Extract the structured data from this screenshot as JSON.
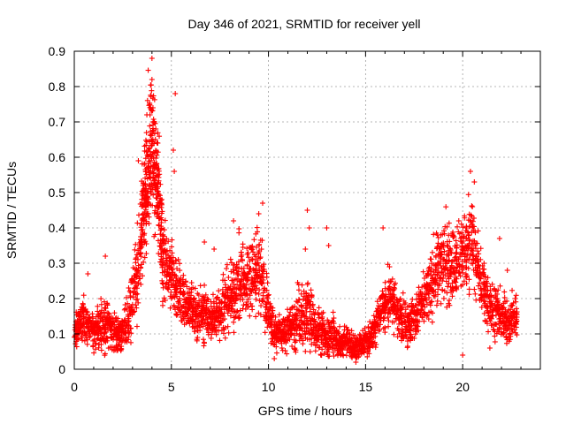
{
  "chart_data": {
    "type": "scatter",
    "title": "Day 346 of 2021, SRMTID for receiver yell",
    "xlabel": "GPS time / hours",
    "ylabel": "SRMTID / TECUs",
    "xlim": [
      0,
      24
    ],
    "ylim": [
      0,
      0.9
    ],
    "xticks": [
      0,
      5,
      10,
      15,
      20
    ],
    "xtick_labels": [
      "0",
      "5",
      "10",
      "15",
      "20"
    ],
    "yticks": [
      0,
      0.1,
      0.2,
      0.3,
      0.4,
      0.5,
      0.6,
      0.7,
      0.8,
      0.9
    ],
    "ytick_labels": [
      "0",
      "0.1",
      "0.2",
      "0.3",
      "0.4",
      "0.5",
      "0.6",
      "0.7",
      "0.8",
      "0.9"
    ],
    "grid": true,
    "marker": "plus",
    "color": "#ff0000",
    "series": [
      {
        "name": "SRMTID",
        "x": [
          0.0,
          0.2,
          0.4,
          0.6,
          0.8,
          1.0,
          1.2,
          1.4,
          1.6,
          1.8,
          2.0,
          2.2,
          2.4,
          2.6,
          2.8,
          3.0,
          3.2,
          3.4,
          3.5,
          3.6,
          3.7,
          3.8,
          3.9,
          4.0,
          4.1,
          4.2,
          4.3,
          4.4,
          4.5,
          4.6,
          4.8,
          5.0,
          5.2,
          5.4,
          5.6,
          5.8,
          6.0,
          6.2,
          6.4,
          6.6,
          6.8,
          7.0,
          7.2,
          7.4,
          7.6,
          7.8,
          8.0,
          8.2,
          8.4,
          8.6,
          8.8,
          9.0,
          9.2,
          9.4,
          9.6,
          9.8,
          10.0,
          10.2,
          10.4,
          10.6,
          10.8,
          11.0,
          11.2,
          11.4,
          11.6,
          11.8,
          12.0,
          12.2,
          12.4,
          12.6,
          12.8,
          13.0,
          13.2,
          13.4,
          13.6,
          13.8,
          14.0,
          14.2,
          14.4,
          14.6,
          14.8,
          15.0,
          15.2,
          15.4,
          15.6,
          15.8,
          16.0,
          16.2,
          16.4,
          16.6,
          16.8,
          17.0,
          17.2,
          17.4,
          17.6,
          17.8,
          18.0,
          18.2,
          18.4,
          18.6,
          18.8,
          19.0,
          19.2,
          19.4,
          19.6,
          19.8,
          20.0,
          20.2,
          20.4,
          20.6,
          20.8,
          21.0,
          21.2,
          21.4,
          21.6,
          21.8,
          22.0,
          22.2,
          22.4,
          22.6,
          22.8
        ],
        "y": [
          0.09,
          0.12,
          0.15,
          0.13,
          0.11,
          0.1,
          0.12,
          0.11,
          0.13,
          0.12,
          0.1,
          0.11,
          0.09,
          0.12,
          0.15,
          0.2,
          0.26,
          0.34,
          0.42,
          0.48,
          0.52,
          0.58,
          0.62,
          0.66,
          0.6,
          0.55,
          0.48,
          0.42,
          0.36,
          0.32,
          0.28,
          0.26,
          0.24,
          0.22,
          0.2,
          0.18,
          0.17,
          0.16,
          0.15,
          0.16,
          0.15,
          0.14,
          0.15,
          0.16,
          0.18,
          0.19,
          0.2,
          0.22,
          0.24,
          0.25,
          0.24,
          0.26,
          0.28,
          0.3,
          0.27,
          0.22,
          0.16,
          0.12,
          0.11,
          0.1,
          0.1,
          0.11,
          0.12,
          0.13,
          0.15,
          0.14,
          0.16,
          0.14,
          0.12,
          0.11,
          0.1,
          0.09,
          0.1,
          0.09,
          0.08,
          0.07,
          0.08,
          0.07,
          0.06,
          0.06,
          0.07,
          0.08,
          0.09,
          0.11,
          0.14,
          0.17,
          0.19,
          0.2,
          0.19,
          0.17,
          0.15,
          0.14,
          0.13,
          0.14,
          0.15,
          0.17,
          0.19,
          0.21,
          0.24,
          0.27,
          0.29,
          0.3,
          0.31,
          0.3,
          0.29,
          0.3,
          0.33,
          0.35,
          0.37,
          0.33,
          0.28,
          0.24,
          0.21,
          0.18,
          0.17,
          0.16,
          0.15,
          0.14,
          0.13,
          0.14,
          0.15
        ],
        "spread": [
          0.03,
          0.04,
          0.05,
          0.05,
          0.04,
          0.04,
          0.05,
          0.06,
          0.06,
          0.05,
          0.05,
          0.05,
          0.04,
          0.05,
          0.06,
          0.08,
          0.09,
          0.1,
          0.12,
          0.13,
          0.14,
          0.15,
          0.16,
          0.16,
          0.15,
          0.14,
          0.13,
          0.12,
          0.11,
          0.1,
          0.08,
          0.08,
          0.07,
          0.07,
          0.07,
          0.06,
          0.06,
          0.06,
          0.06,
          0.06,
          0.06,
          0.05,
          0.06,
          0.06,
          0.07,
          0.07,
          0.07,
          0.08,
          0.09,
          0.09,
          0.09,
          0.09,
          0.1,
          0.1,
          0.1,
          0.08,
          0.06,
          0.05,
          0.04,
          0.04,
          0.04,
          0.05,
          0.05,
          0.06,
          0.07,
          0.07,
          0.08,
          0.07,
          0.06,
          0.05,
          0.05,
          0.04,
          0.05,
          0.05,
          0.04,
          0.03,
          0.04,
          0.03,
          0.03,
          0.03,
          0.03,
          0.03,
          0.04,
          0.04,
          0.05,
          0.05,
          0.06,
          0.06,
          0.06,
          0.05,
          0.05,
          0.05,
          0.05,
          0.05,
          0.05,
          0.06,
          0.06,
          0.07,
          0.07,
          0.08,
          0.09,
          0.09,
          0.09,
          0.09,
          0.09,
          0.09,
          0.09,
          0.1,
          0.1,
          0.09,
          0.08,
          0.07,
          0.07,
          0.06,
          0.06,
          0.05,
          0.05,
          0.05,
          0.05,
          0.05,
          0.05
        ],
        "outliers": [
          [
            4.0,
            0.88
          ],
          [
            4.0,
            0.82
          ],
          [
            5.2,
            0.78
          ],
          [
            4.05,
            0.74
          ],
          [
            3.9,
            0.72
          ],
          [
            4.1,
            0.7
          ],
          [
            4.2,
            0.68
          ],
          [
            3.3,
            0.59
          ],
          [
            3.6,
            0.58
          ],
          [
            5.1,
            0.62
          ],
          [
            5.15,
            0.56
          ],
          [
            4.3,
            0.64
          ],
          [
            3.8,
            0.62
          ],
          [
            9.7,
            0.47
          ],
          [
            9.5,
            0.44
          ],
          [
            8.2,
            0.42
          ],
          [
            12.0,
            0.45
          ],
          [
            12.1,
            0.4
          ],
          [
            13.0,
            0.4
          ],
          [
            15.9,
            0.4
          ],
          [
            20.4,
            0.56
          ],
          [
            20.6,
            0.53
          ],
          [
            20.5,
            0.46
          ],
          [
            19.2,
            0.35
          ],
          [
            21.9,
            0.37
          ],
          [
            13.1,
            0.35
          ],
          [
            11.9,
            0.34
          ],
          [
            6.7,
            0.36
          ],
          [
            7.2,
            0.34
          ],
          [
            20.0,
            0.04
          ],
          [
            21.4,
            0.06
          ],
          [
            1.6,
            0.32
          ],
          [
            0.7,
            0.27
          ],
          [
            2.8,
            0.23
          ],
          [
            18.7,
            0.38
          ],
          [
            19.8,
            0.42
          ],
          [
            20.2,
            0.4
          ],
          [
            22.3,
            0.28
          ],
          [
            22.7,
            0.2
          ],
          [
            14.5,
            0.02
          ],
          [
            10.3,
            0.03
          ],
          [
            12.7,
            0.04
          ]
        ]
      }
    ]
  }
}
